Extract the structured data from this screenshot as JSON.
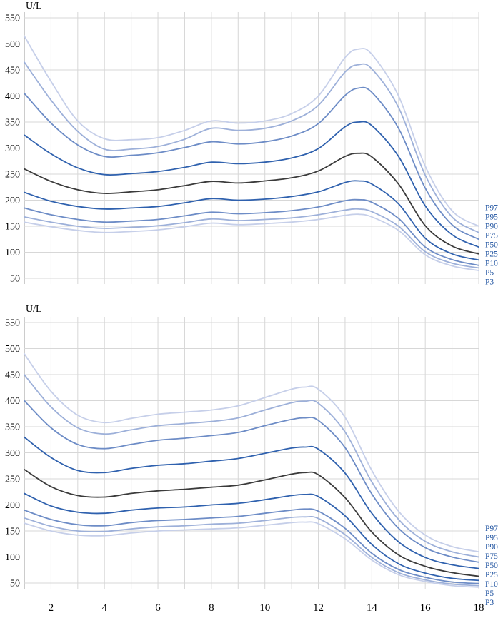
{
  "palette": {
    "grid": "#d7d7d7",
    "axis_line": "#999999",
    "tick_text": "#000000",
    "percentile_label_color": "#1a4f9e",
    "p50_color": "#3b3b3b",
    "p25_p75_color": "#2f61ae",
    "p10_p90_color": "#6d8cc6",
    "p5_p95_color": "#9db0d9",
    "p3_p97_color": "#c6cfe9"
  },
  "chart_data": [
    {
      "type": "line",
      "panel": "top",
      "title": "",
      "xlabel": "",
      "ylabel": "U/L",
      "xlim": [
        1,
        18
      ],
      "ylim": [
        50,
        550
      ],
      "grid": true,
      "legend_position": "right",
      "x_ticks": [
        2,
        4,
        6,
        8,
        10,
        12,
        14,
        16,
        18
      ],
      "show_x_tick_labels": false,
      "y_ticks": [
        550,
        500,
        450,
        400,
        350,
        300,
        250,
        200,
        150,
        100,
        50
      ],
      "x": [
        1,
        2,
        3,
        4,
        5,
        6,
        7,
        8,
        9,
        10,
        11,
        12,
        13,
        13.5,
        14,
        15,
        16,
        17,
        18
      ],
      "series": [
        {
          "name": "P97",
          "color": "#c6cfe9",
          "values": [
            515,
            428,
            352,
            318,
            316,
            320,
            334,
            352,
            348,
            352,
            366,
            400,
            474,
            490,
            480,
            400,
            265,
            180,
            150
          ]
        },
        {
          "name": "P95",
          "color": "#9db0d9",
          "values": [
            465,
            392,
            332,
            298,
            298,
            303,
            317,
            338,
            334,
            338,
            352,
            382,
            446,
            460,
            452,
            378,
            248,
            168,
            138
          ]
        },
        {
          "name": "P90",
          "color": "#6d8cc6",
          "values": [
            405,
            348,
            306,
            284,
            286,
            291,
            301,
            312,
            308,
            312,
            323,
            347,
            401,
            415,
            407,
            338,
            223,
            153,
            125
          ]
        },
        {
          "name": "P75",
          "color": "#2f61ae",
          "values": [
            325,
            289,
            262,
            249,
            251,
            255,
            263,
            273,
            270,
            273,
            281,
            299,
            341,
            350,
            343,
            284,
            189,
            134,
            110
          ]
        },
        {
          "name": "P50",
          "color": "#3b3b3b",
          "values": [
            260,
            236,
            220,
            213,
            216,
            220,
            228,
            236,
            233,
            237,
            243,
            256,
            284,
            290,
            283,
            231,
            151,
            112,
            97
          ]
        },
        {
          "name": "P25",
          "color": "#2f61ae",
          "values": [
            215,
            198,
            188,
            183,
            185,
            188,
            195,
            203,
            200,
            202,
            207,
            216,
            234,
            237,
            231,
            193,
            127,
            97,
            85
          ]
        },
        {
          "name": "P10",
          "color": "#6d8cc6",
          "values": [
            185,
            172,
            163,
            158,
            160,
            163,
            170,
            177,
            174,
            176,
            180,
            187,
            199,
            201,
            196,
            165,
            110,
            86,
            75
          ]
        },
        {
          "name": "P5",
          "color": "#9db0d9",
          "values": [
            168,
            158,
            150,
            146,
            148,
            151,
            157,
            164,
            161,
            163,
            166,
            172,
            181,
            183,
            178,
            150,
            101,
            79,
            70
          ]
        },
        {
          "name": "P3",
          "color": "#c6cfe9",
          "values": [
            158,
            149,
            142,
            138,
            140,
            143,
            149,
            156,
            153,
            155,
            158,
            163,
            171,
            173,
            168,
            142,
            95,
            74,
            65
          ]
        }
      ]
    },
    {
      "type": "line",
      "panel": "bottom",
      "title": "",
      "xlabel": "",
      "ylabel": "U/L",
      "xlim": [
        1,
        18
      ],
      "ylim": [
        50,
        550
      ],
      "grid": true,
      "legend_position": "right",
      "x_ticks": [
        2,
        4,
        6,
        8,
        10,
        12,
        14,
        16,
        18
      ],
      "show_x_tick_labels": true,
      "y_ticks": [
        550,
        500,
        450,
        400,
        350,
        300,
        250,
        200,
        150,
        100,
        50
      ],
      "x": [
        1,
        2,
        3,
        4,
        5,
        6,
        7,
        8,
        9,
        10,
        11,
        11.5,
        12,
        13,
        14,
        15,
        16,
        17,
        18
      ],
      "series": [
        {
          "name": "P97",
          "color": "#c6cfe9",
          "values": [
            490,
            418,
            372,
            358,
            366,
            374,
            378,
            382,
            390,
            406,
            422,
            426,
            422,
            368,
            266,
            188,
            142,
            120,
            110
          ]
        },
        {
          "name": "P95",
          "color": "#9db0d9",
          "values": [
            450,
            388,
            348,
            336,
            344,
            352,
            356,
            360,
            367,
            382,
            396,
            399,
            395,
            340,
            244,
            172,
            130,
            110,
            100
          ]
        },
        {
          "name": "P90",
          "color": "#6d8cc6",
          "values": [
            400,
            348,
            316,
            308,
            316,
            324,
            328,
            333,
            339,
            352,
            364,
            367,
            362,
            310,
            221,
            155,
            118,
            100,
            90
          ]
        },
        {
          "name": "P75",
          "color": "#2f61ae",
          "values": [
            330,
            291,
            266,
            262,
            270,
            276,
            279,
            284,
            289,
            299,
            309,
            311,
            307,
            261,
            184,
            129,
            99,
            85,
            78
          ]
        },
        {
          "name": "P50",
          "color": "#3b3b3b",
          "values": [
            268,
            235,
            218,
            215,
            222,
            227,
            230,
            234,
            238,
            248,
            259,
            262,
            258,
            214,
            148,
            104,
            82,
            70,
            63
          ]
        },
        {
          "name": "P25",
          "color": "#2f61ae",
          "values": [
            222,
            198,
            186,
            184,
            190,
            194,
            196,
            200,
            203,
            210,
            218,
            220,
            216,
            179,
            124,
            87,
            69,
            59,
            55
          ]
        },
        {
          "name": "P10",
          "color": "#6d8cc6",
          "values": [
            190,
            172,
            162,
            160,
            166,
            170,
            172,
            175,
            178,
            184,
            190,
            192,
            188,
            155,
            107,
            76,
            61,
            52,
            49
          ]
        },
        {
          "name": "P5",
          "color": "#9db0d9",
          "values": [
            175,
            159,
            150,
            149,
            154,
            158,
            160,
            163,
            165,
            170,
            176,
            177,
            174,
            143,
            99,
            70,
            56,
            48,
            45
          ]
        },
        {
          "name": "P3",
          "color": "#c6cfe9",
          "values": [
            165,
            150,
            142,
            141,
            146,
            150,
            152,
            154,
            156,
            161,
            166,
            167,
            164,
            135,
            94,
            66,
            53,
            45,
            42
          ]
        }
      ]
    }
  ]
}
